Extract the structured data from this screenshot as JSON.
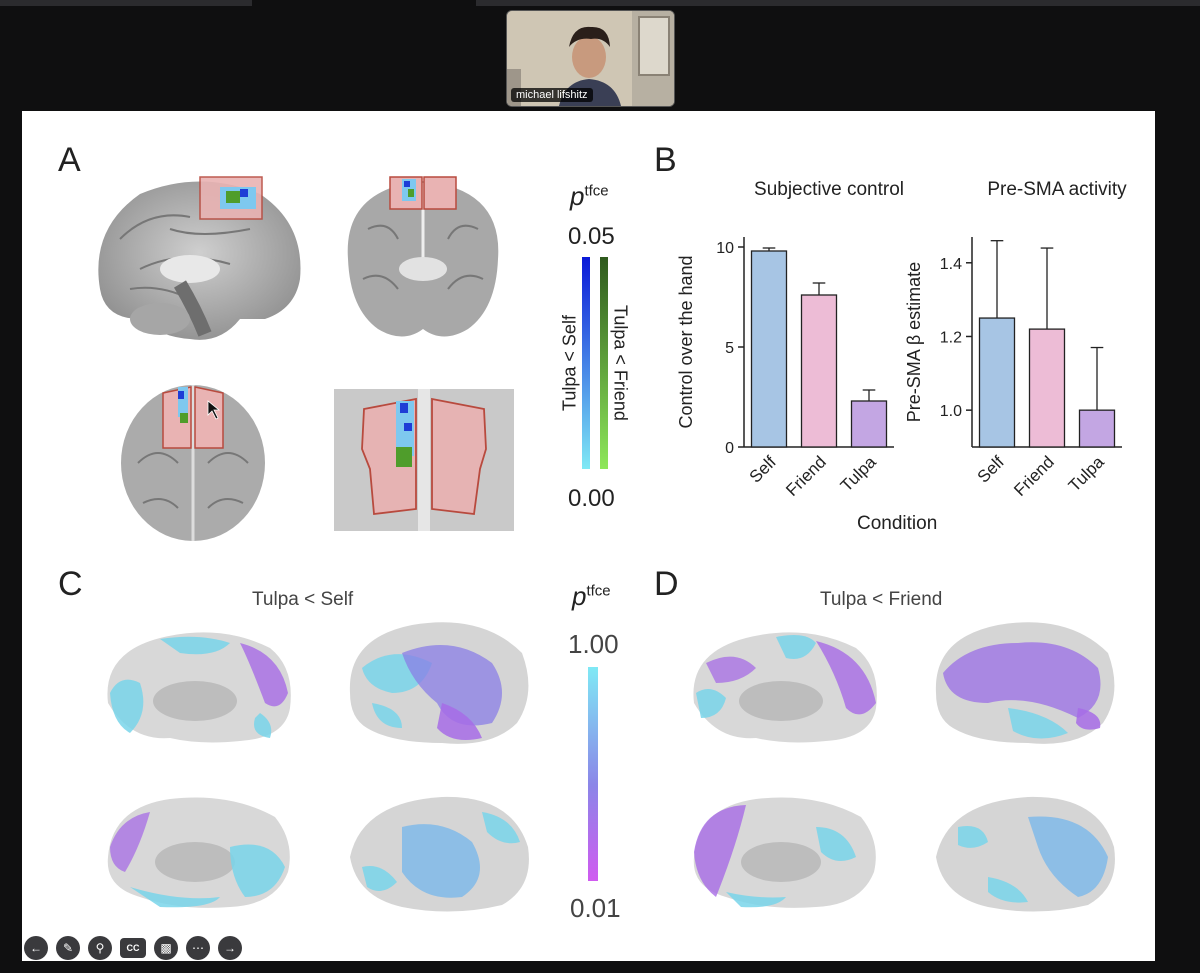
{
  "meeting": {
    "participant_name": "michael lifshitz",
    "toolbar_icons": [
      "back-arrow-icon",
      "pencil-icon",
      "magnifier-icon",
      "closed-caption-icon",
      "camera-off-icon",
      "more-icon",
      "forward-arrow-icon"
    ],
    "cc_label": "CC"
  },
  "slide": {
    "panel_a": {
      "letter": "A",
      "p_symbol": "p",
      "p_superscript": "tfce",
      "scale_max": "0.05",
      "scale_min": "0.00",
      "label_blue": "Tulpa < Self",
      "label_green": "Tulpa < Friend"
    },
    "panel_b": {
      "letter": "B",
      "xlabel_shared": "Condition"
    },
    "panel_c": {
      "letter": "C",
      "title": "Tulpa < Self",
      "p_symbol": "p",
      "p_superscript": "tfce",
      "scale_max": "1.00",
      "scale_min": "0.01"
    },
    "panel_d": {
      "letter": "D",
      "title": "Tulpa < Friend"
    },
    "colors": {
      "bar_self": "#a7c5e4",
      "bar_friend": "#edbcd6",
      "bar_tulpa": "#c3a6e3",
      "roi_fill": "#e9b3b3",
      "roi_stroke": "#b84a3e"
    }
  },
  "chart_data": [
    {
      "type": "bar",
      "title": "Subjective control",
      "ylabel": "Control over the hand",
      "categories": [
        "Self",
        "Friend",
        "Tulpa"
      ],
      "values": [
        9.8,
        7.6,
        2.3
      ],
      "errors": [
        0.15,
        0.6,
        0.55
      ],
      "ylim": [
        0,
        10.5
      ],
      "yticks": [
        "0",
        "5",
        "10"
      ],
      "ytick_values": [
        0,
        5,
        10
      ]
    },
    {
      "type": "bar",
      "title": "Pre-SMA activity",
      "ylabel": "Pre-SMA β estimate",
      "categories": [
        "Self",
        "Friend",
        "Tulpa"
      ],
      "values": [
        1.25,
        1.22,
        1.0
      ],
      "errors": [
        0.21,
        0.22,
        0.17
      ],
      "ylim": [
        0.9,
        1.47
      ],
      "yticks": [
        "1.0",
        "1.2",
        "1.4"
      ],
      "ytick_values": [
        1.0,
        1.2,
        1.4
      ]
    }
  ]
}
